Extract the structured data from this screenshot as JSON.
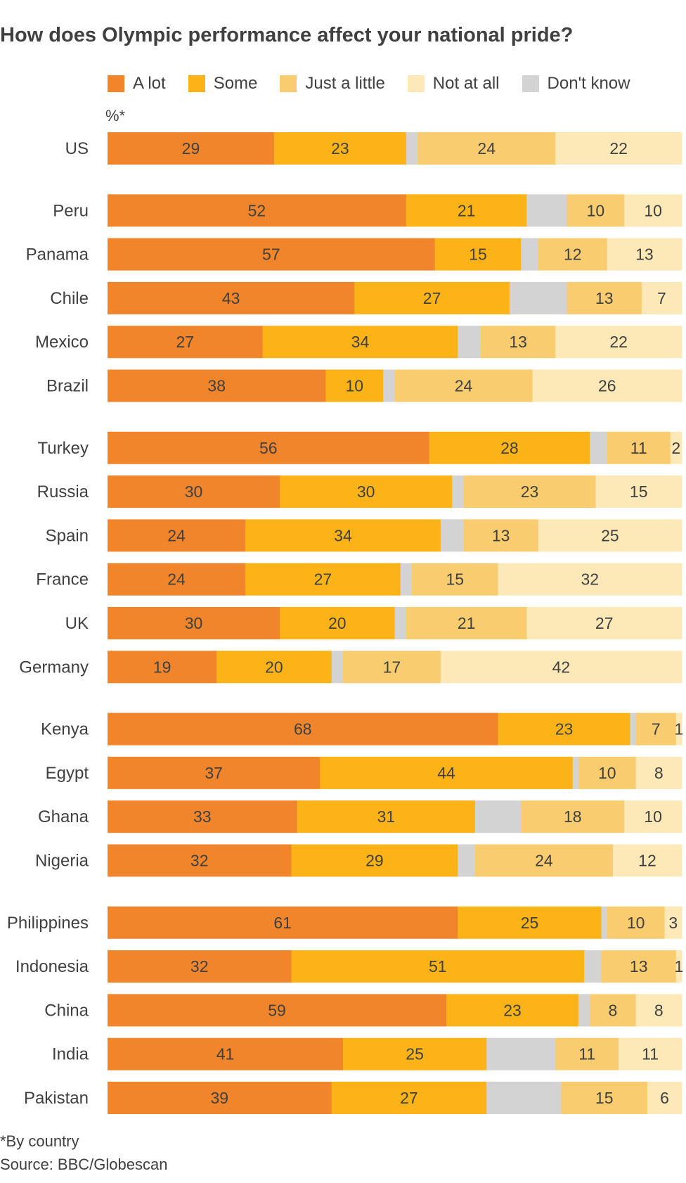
{
  "chart_data": {
    "type": "bar",
    "orientation": "horizontal",
    "stacked": true,
    "title": "How does Olympic performance affect your national pride?",
    "unit_label": "%*",
    "footnote": "*By country",
    "source": "Source: BBC/Globescan",
    "legend_position": "top",
    "series": [
      {
        "name": "A lot",
        "color": "#f0852c"
      },
      {
        "name": "Some",
        "color": "#fcb318"
      },
      {
        "name": "Just a little",
        "color": "#f9cd6f"
      },
      {
        "name": "Not at all",
        "color": "#fde9b8"
      },
      {
        "name": "Don't know",
        "color": "#d3d3d3"
      }
    ],
    "groups": [
      {
        "countries": [
          {
            "name": "US",
            "a_lot": 29,
            "some": 23,
            "dont_know": 2,
            "just_a_little": 24,
            "not_at_all": 22
          }
        ]
      },
      {
        "countries": [
          {
            "name": "Peru",
            "a_lot": 52,
            "some": 21,
            "dont_know": 7,
            "just_a_little": 10,
            "not_at_all": 10
          },
          {
            "name": "Panama",
            "a_lot": 57,
            "some": 15,
            "dont_know": 3,
            "just_a_little": 12,
            "not_at_all": 13
          },
          {
            "name": "Chile",
            "a_lot": 43,
            "some": 27,
            "dont_know": 10,
            "just_a_little": 13,
            "not_at_all": 7
          },
          {
            "name": "Mexico",
            "a_lot": 27,
            "some": 34,
            "dont_know": 4,
            "just_a_little": 13,
            "not_at_all": 22
          },
          {
            "name": "Brazil",
            "a_lot": 38,
            "some": 10,
            "dont_know": 2,
            "just_a_little": 24,
            "not_at_all": 26
          }
        ]
      },
      {
        "countries": [
          {
            "name": "Turkey",
            "a_lot": 56,
            "some": 28,
            "dont_know": 3,
            "just_a_little": 11,
            "not_at_all": 2
          },
          {
            "name": "Russia",
            "a_lot": 30,
            "some": 30,
            "dont_know": 2,
            "just_a_little": 23,
            "not_at_all": 15
          },
          {
            "name": "Spain",
            "a_lot": 24,
            "some": 34,
            "dont_know": 4,
            "just_a_little": 13,
            "not_at_all": 25
          },
          {
            "name": "France",
            "a_lot": 24,
            "some": 27,
            "dont_know": 2,
            "just_a_little": 15,
            "not_at_all": 32
          },
          {
            "name": "UK",
            "a_lot": 30,
            "some": 20,
            "dont_know": 2,
            "just_a_little": 21,
            "not_at_all": 27
          },
          {
            "name": "Germany",
            "a_lot": 19,
            "some": 20,
            "dont_know": 2,
            "just_a_little": 17,
            "not_at_all": 42
          }
        ]
      },
      {
        "countries": [
          {
            "name": "Kenya",
            "a_lot": 68,
            "some": 23,
            "dont_know": 1,
            "just_a_little": 7,
            "not_at_all": 1
          },
          {
            "name": "Egypt",
            "a_lot": 37,
            "some": 44,
            "dont_know": 1,
            "just_a_little": 10,
            "not_at_all": 8
          },
          {
            "name": "Ghana",
            "a_lot": 33,
            "some": 31,
            "dont_know": 8,
            "just_a_little": 18,
            "not_at_all": 10
          },
          {
            "name": "Nigeria",
            "a_lot": 32,
            "some": 29,
            "dont_know": 3,
            "just_a_little": 24,
            "not_at_all": 12
          }
        ]
      },
      {
        "countries": [
          {
            "name": "Philippines",
            "a_lot": 61,
            "some": 25,
            "dont_know": 1,
            "just_a_little": 10,
            "not_at_all": 3
          },
          {
            "name": "Indonesia",
            "a_lot": 32,
            "some": 51,
            "dont_know": 3,
            "just_a_little": 13,
            "not_at_all": 1
          },
          {
            "name": "China",
            "a_lot": 59,
            "some": 23,
            "dont_know": 2,
            "just_a_little": 8,
            "not_at_all": 8
          },
          {
            "name": "India",
            "a_lot": 41,
            "some": 25,
            "dont_know": 12,
            "just_a_little": 11,
            "not_at_all": 11
          },
          {
            "name": "Pakistan",
            "a_lot": 39,
            "some": 27,
            "dont_know": 13,
            "just_a_little": 15,
            "not_at_all": 6
          }
        ]
      }
    ]
  }
}
